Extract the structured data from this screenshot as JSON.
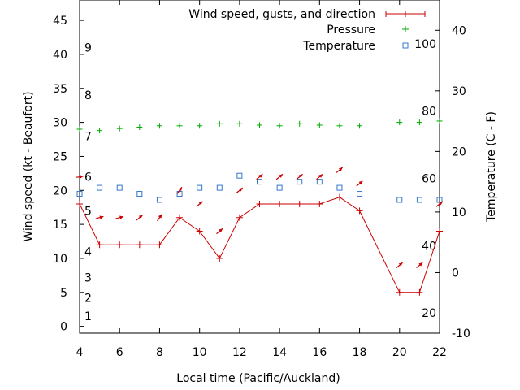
{
  "chart_data": {
    "type": "line",
    "xlabel": "Local time (Pacific/Auckland)",
    "ylabel_left": "Wind speed (kt - Beaufort)",
    "ylabel_right": "Temperature (C - F)",
    "xlim": [
      4,
      22
    ],
    "ylim_left": [
      -1,
      48
    ],
    "ylim_right": [
      -10,
      45
    ],
    "x_ticks": [
      4,
      6,
      8,
      10,
      12,
      14,
      16,
      18,
      20,
      22
    ],
    "y_ticks_left": [
      0,
      5,
      10,
      15,
      20,
      25,
      30,
      35,
      40,
      45
    ],
    "y_ticks_right": [
      -10,
      0,
      10,
      20,
      30,
      40
    ],
    "beaufort_labels": [
      {
        "label": "1",
        "value": 1.5
      },
      {
        "label": "2",
        "value": 4.2
      },
      {
        "label": "3",
        "value": 7.2
      },
      {
        "label": "4",
        "value": 11.0
      },
      {
        "label": "5",
        "value": 17.0
      },
      {
        "label": "6",
        "value": 22.0
      },
      {
        "label": "7",
        "value": 28.0
      },
      {
        "label": "8",
        "value": 34.0
      },
      {
        "label": "9",
        "value": 41.0
      }
    ],
    "fahrenheit_labels": [
      {
        "label": "20",
        "celsius": -6.67
      },
      {
        "label": "40",
        "celsius": 4.44
      },
      {
        "label": "60",
        "celsius": 15.56
      },
      {
        "label": "80",
        "celsius": 26.67
      },
      {
        "label": "100",
        "celsius": 37.78
      }
    ],
    "legend": {
      "wind": "Wind speed, gusts, and direction",
      "pressure": "Pressure",
      "temperature": "Temperature"
    },
    "series": [
      {
        "name": "Wind speed, gusts, and direction",
        "axis": "left",
        "color": "#cc0000",
        "points": [
          [
            4,
            18
          ],
          [
            5,
            12
          ],
          [
            6,
            12
          ],
          [
            7,
            12
          ],
          [
            8,
            12
          ],
          [
            9,
            16
          ],
          [
            10,
            14
          ],
          [
            11,
            10
          ],
          [
            12,
            16
          ],
          [
            13,
            18
          ],
          [
            14,
            18
          ],
          [
            15,
            18
          ],
          [
            16,
            18
          ],
          [
            17,
            19
          ],
          [
            18,
            17
          ],
          [
            20,
            5
          ],
          [
            21,
            5
          ],
          [
            22,
            14
          ]
        ]
      },
      {
        "name": "Pressure",
        "axis": "left",
        "color": "#00aa00",
        "points": [
          [
            4,
            29
          ],
          [
            5,
            28.8
          ],
          [
            6,
            29.1
          ],
          [
            7,
            29.3
          ],
          [
            8,
            29.5
          ],
          [
            9,
            29.5
          ],
          [
            10,
            29.5
          ],
          [
            11,
            29.8
          ],
          [
            12,
            29.8
          ],
          [
            13,
            29.6
          ],
          [
            14,
            29.5
          ],
          [
            15,
            29.8
          ],
          [
            16,
            29.6
          ],
          [
            17,
            29.5
          ],
          [
            18,
            29.5
          ],
          [
            20,
            30
          ],
          [
            21,
            30
          ],
          [
            22,
            30.2
          ]
        ]
      },
      {
        "name": "Temperature",
        "axis": "right",
        "color": "#3377cc",
        "points": [
          [
            4,
            13
          ],
          [
            5,
            14
          ],
          [
            6,
            14
          ],
          [
            7,
            13
          ],
          [
            8,
            12
          ],
          [
            9,
            13
          ],
          [
            10,
            14
          ],
          [
            11,
            14
          ],
          [
            12,
            16
          ],
          [
            13,
            15
          ],
          [
            14,
            14
          ],
          [
            15,
            15
          ],
          [
            16,
            15
          ],
          [
            17,
            14
          ],
          [
            18,
            13
          ],
          [
            20,
            12
          ],
          [
            21,
            12
          ],
          [
            22,
            12
          ]
        ]
      }
    ],
    "direction_arrows": {
      "color": "#cc0000",
      "items": [
        {
          "x": 4,
          "y": 22,
          "angle_deg": -10
        },
        {
          "x": 5,
          "y": 16,
          "angle_deg": -15
        },
        {
          "x": 6,
          "y": 16,
          "angle_deg": -15
        },
        {
          "x": 7,
          "y": 16,
          "angle_deg": -40
        },
        {
          "x": 8,
          "y": 16,
          "angle_deg": -55
        },
        {
          "x": 9,
          "y": 20,
          "angle_deg": -55
        },
        {
          "x": 10,
          "y": 18,
          "angle_deg": -40
        },
        {
          "x": 11,
          "y": 14,
          "angle_deg": -40
        },
        {
          "x": 12,
          "y": 20,
          "angle_deg": -40
        },
        {
          "x": 13,
          "y": 22,
          "angle_deg": -40
        },
        {
          "x": 14,
          "y": 22,
          "angle_deg": -40
        },
        {
          "x": 15,
          "y": 22,
          "angle_deg": -40
        },
        {
          "x": 16,
          "y": 22,
          "angle_deg": -40
        },
        {
          "x": 17,
          "y": 23,
          "angle_deg": -40
        },
        {
          "x": 18,
          "y": 21,
          "angle_deg": -40
        },
        {
          "x": 20,
          "y": 9,
          "angle_deg": -40
        },
        {
          "x": 21,
          "y": 9,
          "angle_deg": -40
        },
        {
          "x": 22,
          "y": 18,
          "angle_deg": -40
        }
      ]
    }
  }
}
